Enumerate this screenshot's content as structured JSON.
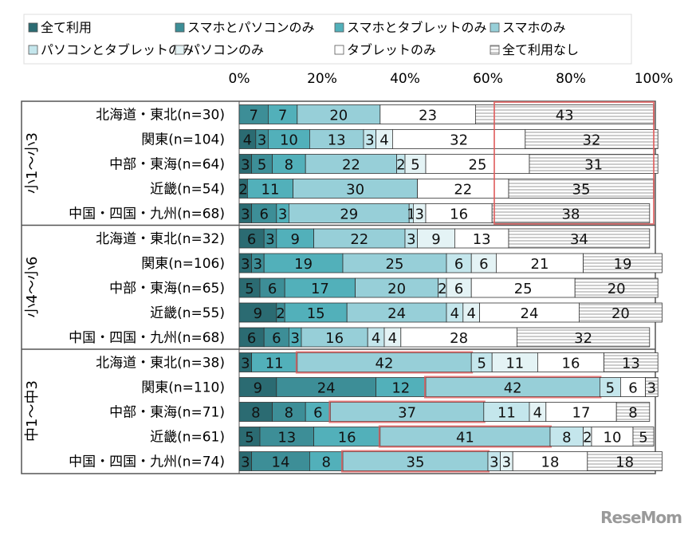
{
  "chart_data": {
    "type": "bar",
    "orientation": "horizontal",
    "stacked": true,
    "xlim": [
      0,
      100
    ],
    "x_ticks": [
      "0%",
      "20%",
      "40%",
      "60%",
      "80%",
      "100%"
    ],
    "legend_placement": "top",
    "series": [
      {
        "name": "全て利用",
        "color": "#2b6b72"
      },
      {
        "name": "スマホとパソコンのみ",
        "color": "#3d8e97"
      },
      {
        "name": "スマホとタブレットのみ",
        "color": "#52b0ba"
      },
      {
        "name": "スマホのみ",
        "color": "#97cfd8"
      },
      {
        "name": "パソコンとタブレットのみ",
        "color": "#c4e6ec"
      },
      {
        "name": "パソコンのみ",
        "color": "#e4f3f5"
      },
      {
        "name": "タブレットのみ",
        "color": "#ffffff"
      },
      {
        "name": "全て利用なし",
        "color": "hatched"
      }
    ],
    "groups": [
      {
        "label": "小1～小3",
        "highlight": "全て利用なし",
        "rows": [
          {
            "label": "北海道・東北(n=30)",
            "values": [
              0,
              7,
              7,
              20,
              0,
              0,
              23,
              43
            ]
          },
          {
            "label": "関東(n=104)",
            "values": [
              4,
              3,
              10,
              13,
              3,
              4,
              32,
              32
            ]
          },
          {
            "label": "中部・東海(n=64)",
            "values": [
              3,
              5,
              8,
              22,
              2,
              5,
              25,
              31
            ]
          },
          {
            "label": "近畿(n=54)",
            "values": [
              2,
              0,
              11,
              30,
              0,
              0,
              22,
              35
            ]
          },
          {
            "label": "中国・四国・九州(n=68)",
            "values": [
              3,
              6,
              3,
              29,
              1,
              3,
              16,
              38
            ]
          }
        ]
      },
      {
        "label": "小4～小6",
        "highlight": "",
        "rows": [
          {
            "label": "北海道・東北(n=32)",
            "values": [
              6,
              3,
              9,
              22,
              3,
              9,
              13,
              34
            ]
          },
          {
            "label": "関東(n=106)",
            "values": [
              3,
              3,
              19,
              25,
              6,
              6,
              21,
              19
            ]
          },
          {
            "label": "中部・東海(n=65)",
            "values": [
              5,
              6,
              17,
              20,
              2,
              6,
              25,
              20
            ]
          },
          {
            "label": "近畿(n=55)",
            "values": [
              9,
              2,
              15,
              24,
              4,
              4,
              24,
              20
            ]
          },
          {
            "label": "中国・四国・九州(n=68)",
            "values": [
              6,
              6,
              3,
              16,
              4,
              4,
              28,
              32
            ]
          }
        ]
      },
      {
        "label": "中1～中3",
        "highlight": "スマホのみ",
        "rows": [
          {
            "label": "北海道・東北(n=38)",
            "values": [
              3,
              0,
              11,
              42,
              5,
              11,
              16,
              13
            ]
          },
          {
            "label": "関東(n=110)",
            "values": [
              9,
              24,
              12,
              42,
              5,
              0,
              6,
              3
            ]
          },
          {
            "label": "中部・東海(n=71)",
            "values": [
              8,
              8,
              6,
              37,
              11,
              4,
              17,
              8
            ]
          },
          {
            "label": "近畿(n=61)",
            "values": [
              5,
              13,
              16,
              41,
              8,
              2,
              10,
              5
            ]
          },
          {
            "label": "中国・四国・九州(n=74)",
            "values": [
              3,
              14,
              8,
              35,
              3,
              3,
              18,
              18
            ]
          }
        ]
      }
    ],
    "highlight_color": "#e05a5a"
  },
  "logo": "ReseMom"
}
